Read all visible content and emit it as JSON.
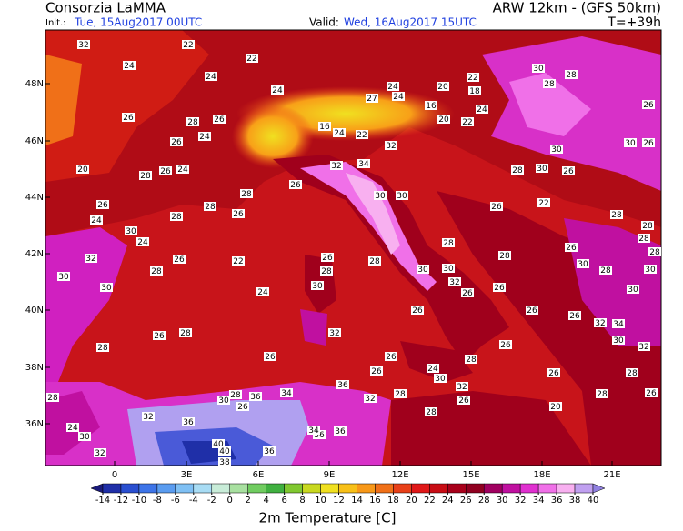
{
  "header": {
    "title": "Consorzia LaMMA",
    "model": "ARW 12km - (GFS 50km)",
    "init_label": "Init.:",
    "init": "Tue, 15Aug2017 00UTC",
    "valid_label": "Valid:",
    "valid": "Wed, 16Aug2017 15UTC",
    "lead": "T=+39h"
  },
  "axes": {
    "lon_labels": [
      "0",
      "3E",
      "6E",
      "9E",
      "12E",
      "15E",
      "18E",
      "21E"
    ],
    "lat_labels": [
      "48N",
      "46N",
      "44N",
      "42N",
      "40N",
      "38N",
      "36N"
    ]
  },
  "colorbar": {
    "title": "2m Temperature [C]",
    "ticks": [
      -14,
      -12,
      -10,
      -8,
      -6,
      -4,
      -2,
      0,
      2,
      4,
      6,
      8,
      10,
      12,
      14,
      16,
      18,
      20,
      22,
      24,
      26,
      28,
      30,
      32,
      34,
      36,
      38,
      40
    ],
    "colors": [
      "#1a1a7a",
      "#1f2fa8",
      "#2a4fd0",
      "#3d74e8",
      "#5a9cf0",
      "#7fc0f4",
      "#a8dcf4",
      "#c8ecd8",
      "#a8e0a0",
      "#70cc60",
      "#40b040",
      "#80c830",
      "#c8d820",
      "#f0e020",
      "#f8c018",
      "#f89818",
      "#f07018",
      "#e84018",
      "#e01818",
      "#c80c14",
      "#a8001a",
      "#900020",
      "#a00060",
      "#c010a0",
      "#e030d0",
      "#f070e8",
      "#f8b0f0",
      "#c0a0f0",
      "#9080e0"
    ]
  },
  "stations": [
    32,
    22,
    22,
    24,
    24,
    24,
    26,
    28,
    26,
    24,
    26,
    20,
    28,
    26,
    24,
    26,
    24,
    30,
    24,
    28,
    28,
    28,
    26,
    26,
    30,
    32,
    30,
    28,
    26,
    22,
    24,
    26,
    30,
    28,
    28,
    32,
    26,
    28,
    28,
    26,
    26,
    26,
    26,
    24,
    30,
    28,
    32,
    26,
    26,
    26,
    26,
    28,
    26,
    22,
    26,
    28,
    28,
    28,
    30,
    34,
    32,
    28,
    28,
    30,
    22,
    18,
    20,
    16,
    20,
    22,
    24,
    24,
    24,
    27,
    22,
    24,
    16,
    32,
    32,
    34,
    30,
    30,
    28,
    30,
    32,
    26,
    26,
    30,
    28,
    24,
    30,
    32,
    36,
    32,
    40,
    40,
    38,
    36,
    36,
    36,
    34,
    36,
    28,
    30,
    26,
    34,
    36,
    32,
    28,
    28,
    30,
    30,
    26,
    26,
    28,
    30,
    26,
    28,
    30,
    28,
    30,
    26,
    32,
    30,
    28,
    26,
    28,
    20
  ]
}
